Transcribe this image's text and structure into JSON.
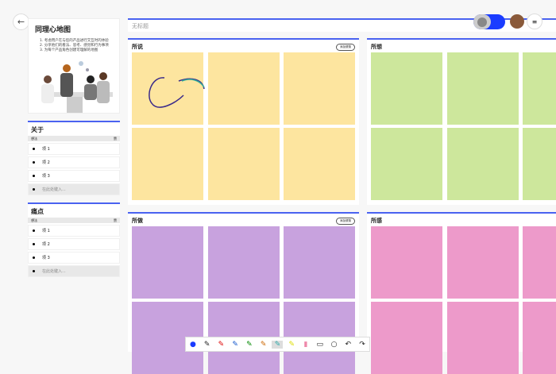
{
  "title_placeholder": "无标题",
  "intro": {
    "title": "同理心地图",
    "steps": [
      "1. 考虑用户在与您的产品进行交互时的体验",
      "2. 分享他们的看法、思考、感觉和行为事项",
      "3. 为每个产品角色创建可理解的地图"
    ]
  },
  "sections": [
    {
      "title": "关于",
      "col1": "想法",
      "col2": "赞",
      "items": [
        "项 1",
        "项 2",
        "项 3"
      ],
      "add": "在此处键入..."
    },
    {
      "title": "痛点",
      "col1": "想法",
      "col2": "赞",
      "items": [
        "项 1",
        "项 2",
        "项 3"
      ],
      "add": "在此处键入..."
    }
  ],
  "quadrants": [
    {
      "title": "所说",
      "button": "添加便笺",
      "color": "#fde59f"
    },
    {
      "title": "所想",
      "button": "",
      "color": "#cde79c"
    },
    {
      "title": "所做",
      "button": "添加便笺",
      "color": "#c8a2de"
    },
    {
      "title": "所感",
      "button": "",
      "color": "#ed9aca"
    }
  ],
  "toolbar": {
    "tools": [
      "select-icon",
      "pen-black-icon",
      "pen-red-icon",
      "pen-blue-icon",
      "pen-green-icon",
      "pen-rainbow-icon",
      "pen-selected-icon",
      "highlighter-icon",
      "eraser-icon",
      "ruler-icon",
      "lasso-icon",
      "undo-icon",
      "redo-icon"
    ]
  },
  "accent": "#4a62f0"
}
